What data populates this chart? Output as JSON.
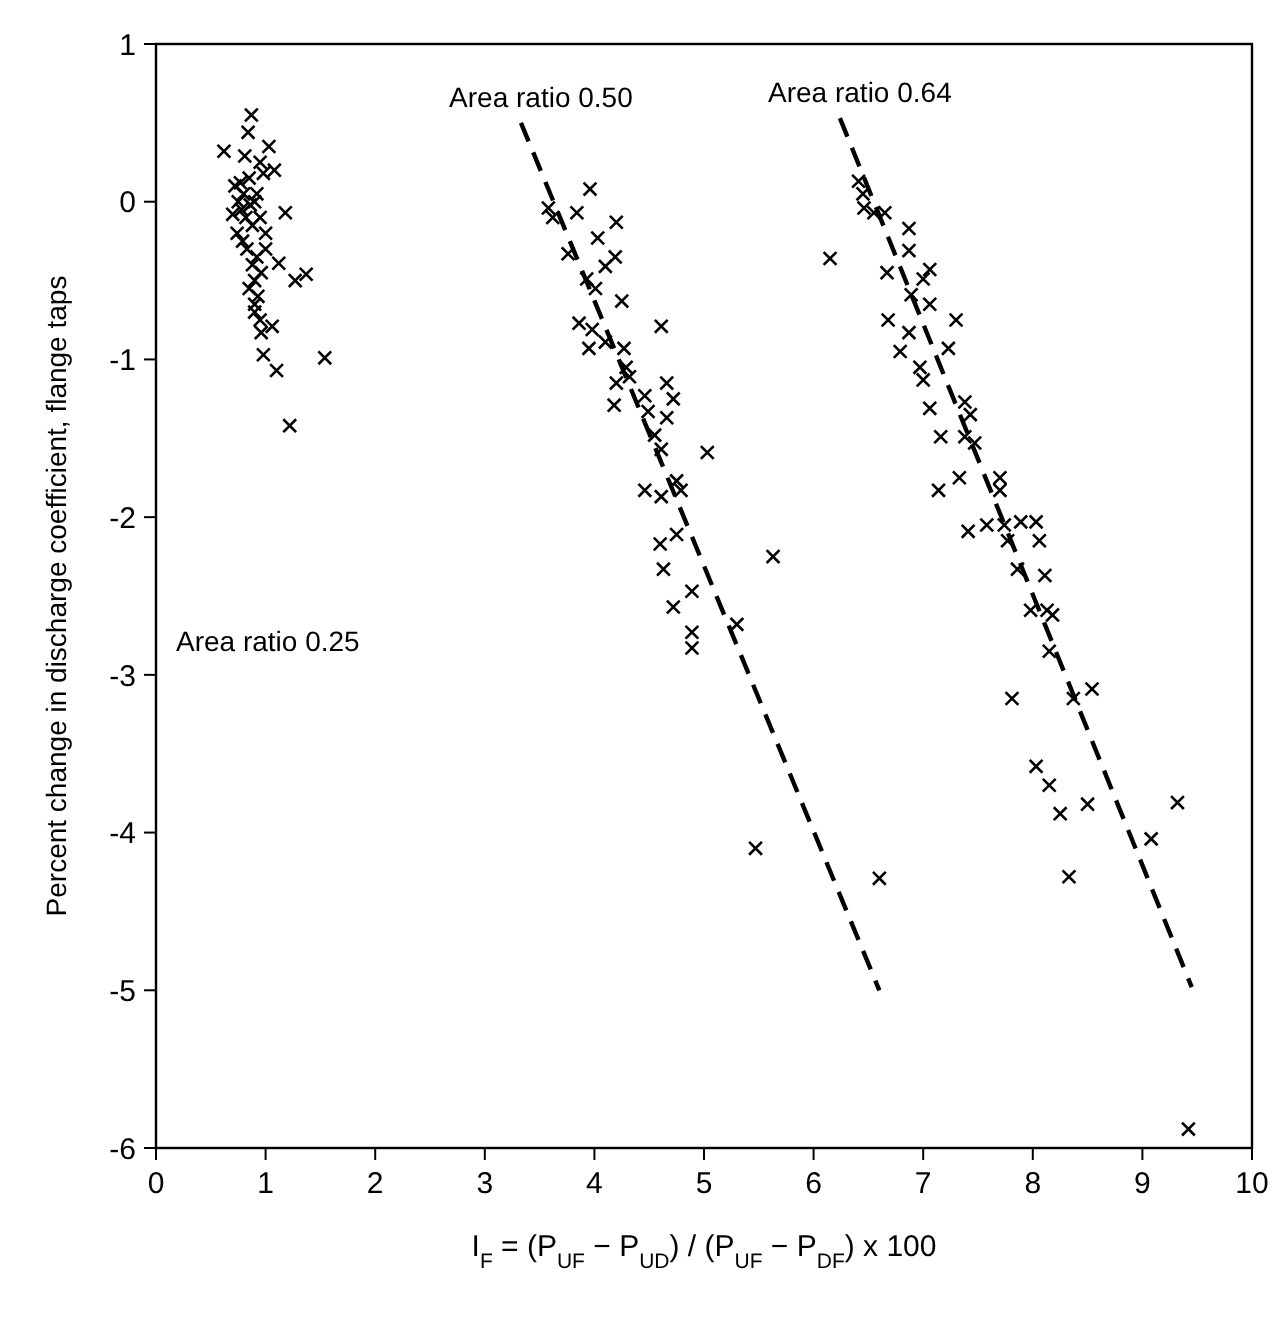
{
  "chart_data": {
    "type": "scatter",
    "xlabel": "I$_{F}$ = (P$_{UF}$ − P$_{UD}$) / (P$_{UF}$ − P$_{DF}$) x 100",
    "ylabel": "Percent change in discharge coefficient, flange taps",
    "xlim": [
      0,
      10
    ],
    "ylim": [
      -6,
      1
    ],
    "xticks": [
      0,
      1,
      2,
      3,
      4,
      5,
      6,
      7,
      8,
      9,
      10
    ],
    "yticks": [
      -6,
      -5,
      -4,
      -3,
      -2,
      -1,
      0,
      1
    ],
    "grid": false,
    "legend": false,
    "marker": "cross",
    "annotations": [
      "Area ratio 0.25",
      "Area ratio 0.50",
      "Area ratio 0.64"
    ],
    "series": [
      {
        "color": "#000000",
        "x": [
          0.87,
          0.84,
          0.62,
          1.03,
          1.08,
          0.81,
          1.18,
          0.72,
          0.75,
          0.78,
          0.8,
          0.82,
          0.85,
          0.88,
          0.9,
          0.7,
          0.74,
          0.77,
          0.79,
          0.83,
          0.86,
          0.92,
          0.95,
          0.98,
          0.88,
          0.9,
          0.93,
          0.96,
          0.85,
          0.9,
          1.0,
          0.95,
          1.12,
          1.27,
          1.37,
          1.06,
          0.96,
          0.98,
          1.1,
          1.54,
          1.22,
          0.9,
          0.95,
          1.0,
          0.92
        ],
        "values": [
          0.55,
          0.44,
          0.32,
          0.35,
          0.2,
          0.29,
          -0.07,
          0.1,
          0.0,
          -0.05,
          0.05,
          -0.1,
          0.15,
          -0.15,
          0.0,
          -0.08,
          -0.2,
          0.12,
          -0.25,
          -0.3,
          -0.02,
          -0.35,
          -0.1,
          0.18,
          -0.4,
          -0.5,
          -0.6,
          -0.45,
          -0.55,
          -0.65,
          -0.3,
          0.25,
          -0.39,
          -0.5,
          -0.46,
          -0.79,
          -0.83,
          -0.97,
          -1.07,
          -0.99,
          -1.42,
          -0.7,
          -0.75,
          -0.2,
          0.05
        ]
      },
      {
        "color": "#000000",
        "x": [
          3.96,
          3.58,
          3.62,
          3.84,
          4.2,
          4.03,
          3.76,
          4.19,
          4.1,
          3.93,
          4.01,
          4.25,
          4.61,
          3.86,
          3.98,
          3.95,
          4.1,
          4.27,
          4.29,
          4.32,
          4.2,
          4.18,
          4.46,
          4.66,
          4.72,
          4.49,
          4.66,
          4.55,
          4.61,
          5.03,
          4.75,
          4.79,
          4.46,
          4.61,
          4.75,
          4.6,
          4.63,
          5.63,
          4.89,
          4.72,
          4.89,
          5.3,
          4.89,
          5.47,
          6.6
        ],
        "values": [
          0.08,
          -0.04,
          -0.1,
          -0.07,
          -0.13,
          -0.23,
          -0.33,
          -0.35,
          -0.41,
          -0.49,
          -0.55,
          -0.63,
          -0.79,
          -0.77,
          -0.81,
          -0.93,
          -0.89,
          -0.93,
          -1.05,
          -1.11,
          -1.15,
          -1.29,
          -1.23,
          -1.15,
          -1.25,
          -1.33,
          -1.37,
          -1.48,
          -1.57,
          -1.59,
          -1.77,
          -1.83,
          -1.83,
          -1.87,
          -2.11,
          -2.17,
          -2.33,
          -2.25,
          -2.47,
          -2.57,
          -2.73,
          -2.68,
          -2.83,
          -4.1,
          -4.29
        ]
      },
      {
        "color": "#000000",
        "x": [
          6.15,
          6.41,
          6.45,
          6.46,
          6.55,
          6.65,
          6.87,
          6.87,
          6.67,
          7.06,
          7.0,
          6.89,
          7.06,
          6.68,
          7.3,
          6.87,
          6.79,
          7.23,
          6.97,
          7.0,
          7.06,
          7.38,
          7.43,
          7.16,
          7.38,
          7.47,
          7.33,
          7.14,
          7.7,
          7.7,
          7.41,
          7.58,
          7.74,
          7.89,
          8.03,
          8.06,
          7.77,
          7.86,
          8.11,
          7.98,
          8.13,
          8.18,
          8.15,
          7.81,
          8.37,
          8.54,
          8.03,
          8.15,
          8.25,
          8.5,
          8.33,
          9.08,
          9.32,
          9.42
        ],
        "values": [
          -0.36,
          0.13,
          0.05,
          -0.04,
          -0.07,
          -0.07,
          -0.17,
          -0.31,
          -0.45,
          -0.43,
          -0.49,
          -0.59,
          -0.65,
          -0.75,
          -0.75,
          -0.83,
          -0.95,
          -0.93,
          -1.05,
          -1.13,
          -1.31,
          -1.27,
          -1.35,
          -1.49,
          -1.49,
          -1.53,
          -1.75,
          -1.83,
          -1.75,
          -1.83,
          -2.09,
          -2.05,
          -2.05,
          -2.03,
          -2.03,
          -2.15,
          -2.15,
          -2.33,
          -2.37,
          -2.59,
          -2.59,
          -2.62,
          -2.85,
          -3.15,
          -3.15,
          -3.09,
          -3.58,
          -3.7,
          -3.88,
          -3.82,
          -4.28,
          -4.04,
          -3.81,
          -5.88
        ]
      },
      {
        "type": "line",
        "color": "#000000",
        "line_style": "dashed",
        "marker": "none",
        "x": [
          3.33,
          6.6
        ],
        "values": [
          0.5,
          -5.0
        ]
      },
      {
        "type": "line",
        "color": "#000000",
        "line_style": "dashed",
        "marker": "none",
        "x": [
          6.24,
          9.45
        ],
        "values": [
          0.53,
          -4.98
        ]
      }
    ]
  }
}
